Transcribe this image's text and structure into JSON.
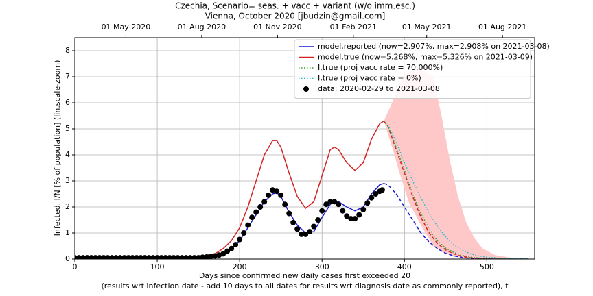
{
  "chart_data": {
    "type": "line",
    "title": "Czechia, Scenario= seas. + vacc + variant (w/o imm.esc.)",
    "subtitle": "Vienna, October 2020 [jbudzin@gmail.com]",
    "xlabel": "Days since confirmed new daily cases first exceeded 20",
    "xlabel_note": "(results wrt infection date - add 10 days to all dates for results wrt diagnosis date as commonly reported), t",
    "ylabel": "Infected, I/N [% of population] (lin.scale-zoom)",
    "xlim": [
      0,
      558
    ],
    "xticks": [
      0,
      100,
      200,
      300,
      400,
      500
    ],
    "x2ticks": [
      {
        "value": 62,
        "label": "01 May 2020"
      },
      {
        "value": 154,
        "label": "01 Aug 2020"
      },
      {
        "value": 246,
        "label": "01 Nov 2020"
      },
      {
        "value": 338,
        "label": "01 Feb 2021"
      },
      {
        "value": 427,
        "label": "01 May 2021"
      },
      {
        "value": 519,
        "label": "01 Aug 2021"
      }
    ],
    "ylim": [
      0,
      8.5
    ],
    "yticks": [
      0,
      1,
      2,
      3,
      4,
      5,
      6,
      7,
      8
    ],
    "grid": true,
    "legend": "upper right",
    "x": [
      0,
      10,
      20,
      30,
      40,
      50,
      60,
      70,
      80,
      90,
      100,
      110,
      120,
      130,
      140,
      150,
      160,
      170,
      180,
      190,
      200,
      210,
      220,
      230,
      240,
      245,
      250,
      260,
      270,
      280,
      290,
      300,
      310,
      315,
      320,
      330,
      340,
      350,
      360,
      370,
      375,
      380,
      390,
      400,
      410,
      420,
      430,
      440,
      450,
      460,
      470,
      480,
      490,
      500,
      510,
      520,
      530,
      540,
      550
    ],
    "series": [
      {
        "name": "model,reported (now=2.907%, max=2.908% on 2021-03-08)",
        "color": "#1a1ad6",
        "style": "solid",
        "values": [
          0.02,
          0.03,
          0.05,
          0.05,
          0.05,
          0.05,
          0.05,
          0.05,
          0.05,
          0.05,
          0.05,
          0.05,
          0.05,
          0.05,
          0.05,
          0.05,
          0.07,
          0.1,
          0.2,
          0.4,
          0.7,
          1.2,
          1.7,
          2.2,
          2.5,
          2.55,
          2.4,
          1.8,
          1.3,
          1.0,
          1.05,
          1.6,
          2.1,
          2.25,
          2.2,
          2.0,
          1.85,
          2.0,
          2.5,
          2.85,
          2.9,
          2.85,
          2.5,
          2.0,
          1.5,
          1.0,
          0.65,
          0.4,
          0.22,
          0.12,
          0.06,
          0.03,
          0.02,
          0.01,
          0,
          0,
          0,
          0,
          0
        ]
      },
      {
        "name": "model,true (now=5.268%, max=5.326% on 2021-03-09)",
        "color": "#d42222",
        "style": "solid",
        "values": [
          0.05,
          0.07,
          0.1,
          0.1,
          0.1,
          0.1,
          0.1,
          0.1,
          0.1,
          0.1,
          0.1,
          0.1,
          0.1,
          0.1,
          0.1,
          0.1,
          0.15,
          0.2,
          0.4,
          0.7,
          1.2,
          2.0,
          3.0,
          4.0,
          4.55,
          4.55,
          4.3,
          3.3,
          2.4,
          1.95,
          2.2,
          3.2,
          4.2,
          4.3,
          4.2,
          3.7,
          3.4,
          3.7,
          4.6,
          5.2,
          5.3,
          5.1,
          4.2,
          3.3,
          2.4,
          1.6,
          1.0,
          0.6,
          0.35,
          0.2,
          0.1,
          0.05,
          0.02,
          0.01,
          0,
          0,
          0,
          0,
          0
        ]
      },
      {
        "name": "I,true (proj vacc rate = 70.000%)",
        "color": "#2ca02c",
        "style": "dotted",
        "values": [
          null,
          null,
          null,
          null,
          null,
          null,
          null,
          null,
          null,
          null,
          null,
          null,
          null,
          null,
          null,
          null,
          null,
          null,
          null,
          null,
          null,
          null,
          null,
          null,
          null,
          null,
          null,
          null,
          null,
          null,
          null,
          null,
          null,
          null,
          null,
          null,
          null,
          null,
          null,
          null,
          5.3,
          5.1,
          4.3,
          3.4,
          2.5,
          1.75,
          1.15,
          0.7,
          0.42,
          0.25,
          0.14,
          0.08,
          0.04,
          0.02,
          0.01,
          0.01,
          0,
          0,
          0
        ]
      },
      {
        "name": "I,true (proj vacc rate = 0%)",
        "color": "#17becf",
        "style": "dotted",
        "values": [
          null,
          null,
          null,
          null,
          null,
          null,
          null,
          null,
          null,
          null,
          null,
          null,
          null,
          null,
          null,
          null,
          null,
          null,
          null,
          null,
          null,
          null,
          null,
          null,
          null,
          null,
          null,
          null,
          null,
          null,
          null,
          null,
          null,
          null,
          null,
          null,
          null,
          null,
          null,
          null,
          5.3,
          5.15,
          4.5,
          3.7,
          3.0,
          2.35,
          1.75,
          1.25,
          0.85,
          0.55,
          0.35,
          0.2,
          0.12,
          0.07,
          0.05,
          0.03,
          0.02,
          0.02,
          0.02
        ]
      }
    ],
    "band": {
      "color": "#ffc8c8",
      "x": [
        375,
        385,
        395,
        405,
        420,
        435,
        445,
        455,
        465,
        475,
        485,
        495,
        510,
        530,
        550
      ],
      "upper": [
        5.3,
        6.0,
        6.8,
        7.2,
        7.3,
        7.0,
        5.5,
        3.8,
        2.4,
        1.4,
        0.8,
        0.4,
        0.15,
        0.05,
        0.02
      ],
      "lower": [
        5.3,
        4.3,
        3.2,
        2.2,
        1.3,
        0.5,
        0.28,
        0.15,
        0.08,
        0.05,
        0.03,
        0.02,
        0.01,
        0,
        0
      ]
    },
    "data": {
      "name": "data: 2020-02-29 to 2021-03-08",
      "color": "#000000",
      "x": [
        0,
        5,
        10,
        15,
        20,
        25,
        30,
        35,
        40,
        45,
        50,
        55,
        60,
        65,
        70,
        75,
        80,
        85,
        90,
        95,
        100,
        105,
        110,
        115,
        120,
        125,
        130,
        135,
        140,
        145,
        150,
        155,
        160,
        165,
        170,
        175,
        180,
        185,
        190,
        195,
        200,
        205,
        210,
        215,
        220,
        225,
        230,
        235,
        240,
        245,
        250,
        255,
        260,
        265,
        270,
        275,
        280,
        285,
        290,
        295,
        300,
        305,
        310,
        315,
        320,
        325,
        330,
        335,
        340,
        345,
        350,
        355,
        360,
        365,
        370,
        373
      ],
      "values": [
        0.05,
        0.05,
        0.05,
        0.05,
        0.05,
        0.05,
        0.05,
        0.05,
        0.05,
        0.05,
        0.05,
        0.05,
        0.05,
        0.05,
        0.05,
        0.05,
        0.05,
        0.05,
        0.05,
        0.05,
        0.05,
        0.05,
        0.05,
        0.05,
        0.05,
        0.05,
        0.05,
        0.05,
        0.05,
        0.05,
        0.05,
        0.07,
        0.08,
        0.1,
        0.12,
        0.15,
        0.2,
        0.3,
        0.4,
        0.55,
        0.75,
        1.0,
        1.3,
        1.6,
        1.8,
        2.0,
        2.2,
        2.45,
        2.65,
        2.6,
        2.45,
        2.1,
        1.75,
        1.4,
        1.15,
        0.95,
        0.95,
        1.05,
        1.25,
        1.5,
        1.85,
        2.1,
        2.2,
        2.2,
        2.1,
        1.85,
        1.65,
        1.55,
        1.55,
        1.7,
        1.9,
        2.15,
        2.35,
        2.5,
        2.6,
        2.65
      ]
    }
  }
}
